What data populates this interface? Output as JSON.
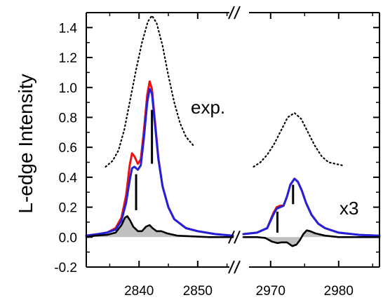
{
  "chart_data": {
    "type": "line",
    "ylabel": "L-edge Intensity",
    "ylim": [
      -0.2,
      1.5
    ],
    "y_ticks": [
      "1.4",
      "1.2",
      "1.0",
      "0.8",
      "0.6",
      "0.4",
      "0.2",
      "0.0",
      "-0.2"
    ],
    "x_panels": [
      {
        "xlim": [
          2831,
          2856
        ],
        "ticks": [
          "2840",
          "2850"
        ]
      },
      {
        "xlim": [
          2966,
          2986
        ],
        "ticks": [
          "2970",
          "2980"
        ]
      }
    ],
    "grid": false,
    "annotations": [
      "exp.",
      "x3"
    ],
    "colors": {
      "red": "#ee1111",
      "blue": "#2222dd",
      "black": "#000000",
      "shade": "#c0c0c0"
    },
    "series": [
      {
        "style": "dotted",
        "panel_values": [
          [
            [
              2834.3,
              0.47
            ],
            [
              2835.5,
              0.51
            ],
            [
              2836.5,
              0.58
            ],
            [
              2837.5,
              0.72
            ],
            [
              2838.5,
              0.92
            ],
            [
              2839.5,
              1.12
            ],
            [
              2840.5,
              1.3
            ],
            [
              2841.5,
              1.44
            ],
            [
              2842.2,
              1.48
            ],
            [
              2843,
              1.43
            ],
            [
              2844,
              1.28
            ],
            [
              2845,
              1.08
            ],
            [
              2846,
              0.9
            ],
            [
              2847,
              0.76
            ],
            [
              2848,
              0.67
            ],
            [
              2849.3,
              0.61
            ]
          ],
          [
            [
              2967.5,
              0.47
            ],
            [
              2968.5,
              0.5
            ],
            [
              2969.5,
              0.55
            ],
            [
              2970.5,
              0.62
            ],
            [
              2971.5,
              0.71
            ],
            [
              2972.5,
              0.8
            ],
            [
              2973.5,
              0.83
            ],
            [
              2974.5,
              0.79
            ],
            [
              2975.5,
              0.7
            ],
            [
              2976.5,
              0.61
            ],
            [
              2977.5,
              0.54
            ],
            [
              2978.5,
              0.5
            ],
            [
              2979.5,
              0.49
            ],
            [
              2980.5,
              0.48
            ]
          ]
        ]
      },
      {
        "color": "red",
        "panel_values": [
          [
            [
              2831,
              0.01
            ],
            [
              2833,
              0.02
            ],
            [
              2834.5,
              0.03
            ],
            [
              2836,
              0.06
            ],
            [
              2837,
              0.13
            ],
            [
              2837.8,
              0.28
            ],
            [
              2838.4,
              0.48
            ],
            [
              2838.8,
              0.56
            ],
            [
              2839.2,
              0.54
            ],
            [
              2839.8,
              0.49
            ],
            [
              2840.3,
              0.52
            ],
            [
              2840.8,
              0.7
            ],
            [
              2841.4,
              0.95
            ],
            [
              2841.8,
              1.04
            ],
            [
              2842.2,
              0.99
            ],
            [
              2842.7,
              0.78
            ],
            [
              2843.3,
              0.53
            ],
            [
              2844,
              0.34
            ],
            [
              2845,
              0.2
            ],
            [
              2846,
              0.12
            ],
            [
              2848,
              0.06
            ],
            [
              2850,
              0.04
            ],
            [
              2853,
              0.02
            ],
            [
              2856,
              0.01
            ]
          ],
          [
            [
              2966,
              0.02
            ],
            [
              2968,
              0.03
            ],
            [
              2969.5,
              0.06
            ],
            [
              2970.4,
              0.16
            ],
            [
              2970.9,
              0.2
            ],
            [
              2971.4,
              0.21
            ],
            [
              2971.9,
              0.21
            ],
            [
              2972.4,
              0.27
            ],
            [
              2972.9,
              0.35
            ],
            [
              2973.5,
              0.39
            ],
            [
              2974,
              0.37
            ],
            [
              2974.6,
              0.31
            ],
            [
              2975.2,
              0.23
            ],
            [
              2976,
              0.15
            ],
            [
              2977,
              0.09
            ],
            [
              2978,
              0.06
            ],
            [
              2980,
              0.03
            ],
            [
              2983,
              0.015
            ],
            [
              2986,
              0.01
            ]
          ]
        ]
      },
      {
        "color": "blue",
        "panel_values": [
          [
            [
              2831,
              0.01
            ],
            [
              2833,
              0.02
            ],
            [
              2834.5,
              0.03
            ],
            [
              2836,
              0.05
            ],
            [
              2837,
              0.11
            ],
            [
              2837.8,
              0.23
            ],
            [
              2838.4,
              0.38
            ],
            [
              2838.8,
              0.46
            ],
            [
              2839.2,
              0.47
            ],
            [
              2839.8,
              0.45
            ],
            [
              2840.3,
              0.48
            ],
            [
              2840.8,
              0.65
            ],
            [
              2841.4,
              0.9
            ],
            [
              2841.8,
              0.99
            ],
            [
              2842.2,
              0.96
            ],
            [
              2842.7,
              0.76
            ],
            [
              2843.3,
              0.52
            ],
            [
              2844,
              0.34
            ],
            [
              2845,
              0.2
            ],
            [
              2846,
              0.12
            ],
            [
              2848,
              0.06
            ],
            [
              2850,
              0.04
            ],
            [
              2853,
              0.02
            ],
            [
              2856,
              0.01
            ]
          ],
          [
            [
              2966,
              0.02
            ],
            [
              2968,
              0.03
            ],
            [
              2969.5,
              0.06
            ],
            [
              2970.4,
              0.15
            ],
            [
              2970.9,
              0.19
            ],
            [
              2971.4,
              0.2
            ],
            [
              2971.9,
              0.21
            ],
            [
              2972.4,
              0.27
            ],
            [
              2972.9,
              0.35
            ],
            [
              2973.5,
              0.39
            ],
            [
              2974,
              0.37
            ],
            [
              2974.6,
              0.31
            ],
            [
              2975.2,
              0.23
            ],
            [
              2976,
              0.15
            ],
            [
              2977,
              0.09
            ],
            [
              2978,
              0.06
            ],
            [
              2980,
              0.03
            ],
            [
              2983,
              0.015
            ],
            [
              2986,
              0.01
            ]
          ]
        ]
      },
      {
        "color": "black",
        "fill": "shade",
        "panel_values": [
          [
            [
              2831,
              0.0
            ],
            [
              2832.5,
              0.01
            ],
            [
              2834.5,
              0.015
            ],
            [
              2836,
              0.03
            ],
            [
              2837,
              0.08
            ],
            [
              2837.6,
              0.13
            ],
            [
              2838,
              0.14
            ],
            [
              2838.5,
              0.11
            ],
            [
              2839,
              0.07
            ],
            [
              2839.8,
              0.04
            ],
            [
              2840.5,
              0.04
            ],
            [
              2841.2,
              0.07
            ],
            [
              2841.8,
              0.08
            ],
            [
              2842.3,
              0.06
            ],
            [
              2843,
              0.04
            ],
            [
              2843.8,
              0.04
            ],
            [
              2844.8,
              0.025
            ],
            [
              2846.5,
              0.01
            ],
            [
              2849,
              0.005
            ],
            [
              2852,
              0.0
            ],
            [
              2856,
              0.0
            ]
          ],
          [
            [
              2966,
              0.0
            ],
            [
              2968,
              0.0
            ],
            [
              2969.2,
              -0.005
            ],
            [
              2970.2,
              -0.03
            ],
            [
              2971,
              -0.04
            ],
            [
              2971.6,
              -0.035
            ],
            [
              2972.4,
              -0.035
            ],
            [
              2973.2,
              -0.06
            ],
            [
              2973.8,
              -0.05
            ],
            [
              2974.3,
              -0.02
            ],
            [
              2974.8,
              0.02
            ],
            [
              2975.3,
              0.045
            ],
            [
              2975.8,
              0.04
            ],
            [
              2976.6,
              0.025
            ],
            [
              2978,
              0.01
            ],
            [
              2980,
              0.0
            ],
            [
              2983,
              0.0
            ],
            [
              2986,
              0.0
            ]
          ]
        ]
      }
    ],
    "sticks": [
      [
        [
          2839.5,
          0.18,
          0.42
        ],
        [
          2842.2,
          0.49,
          0.85
        ]
      ],
      [
        [
          2971,
          0.03,
          0.17
        ],
        [
          2973.3,
          0.22,
          0.35
        ]
      ]
    ]
  }
}
